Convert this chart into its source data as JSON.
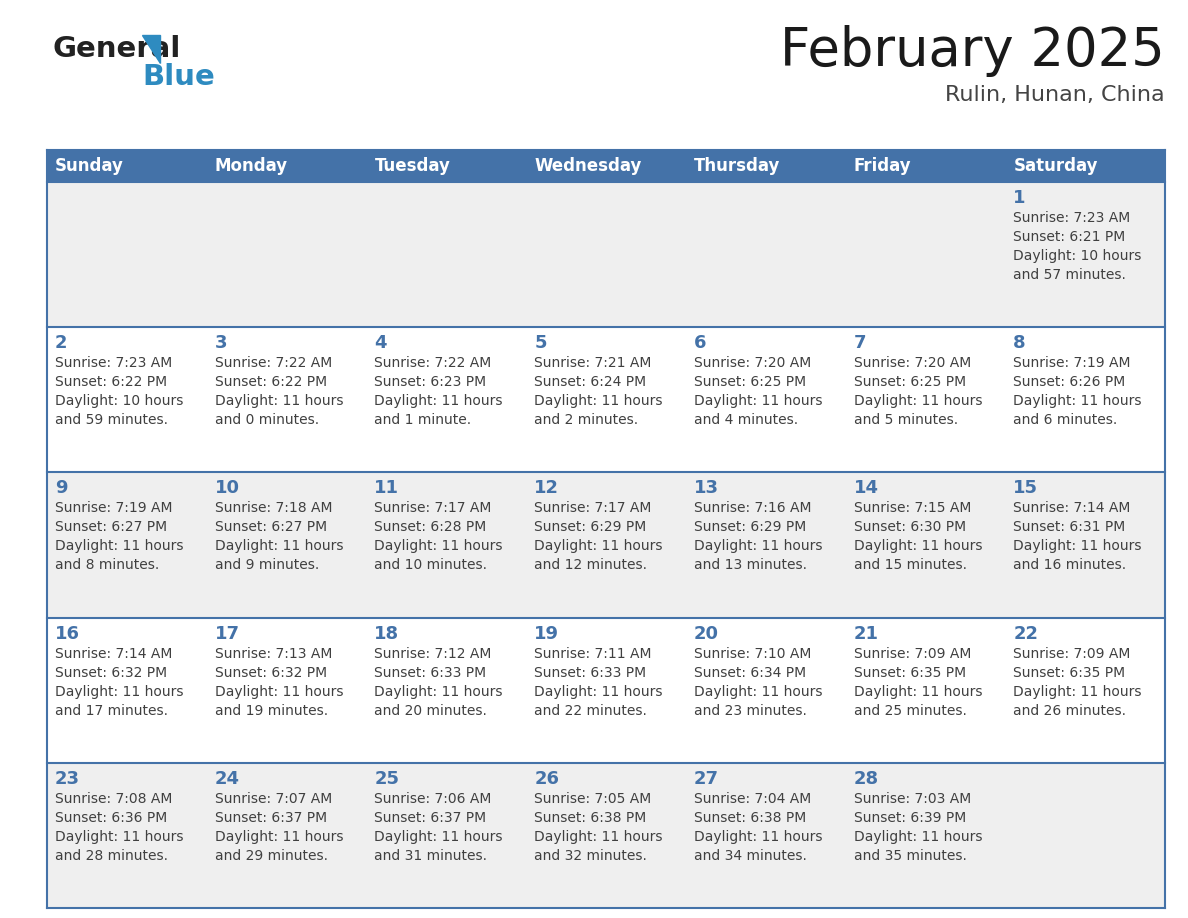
{
  "title": "February 2025",
  "subtitle": "Rulin, Hunan, China",
  "days_of_week": [
    "Sunday",
    "Monday",
    "Tuesday",
    "Wednesday",
    "Thursday",
    "Friday",
    "Saturday"
  ],
  "header_bg": "#4472a8",
  "header_text": "#ffffff",
  "cell_bg_odd": "#efefef",
  "cell_bg_even": "#ffffff",
  "day_num_color": "#4472a8",
  "text_color": "#404040",
  "border_color": "#4472a8",
  "calendar_data": [
    [
      null,
      null,
      null,
      null,
      null,
      null,
      {
        "day": 1,
        "sunrise": "7:23 AM",
        "sunset": "6:21 PM",
        "daylight_line1": "Daylight: 10 hours",
        "daylight_line2": "and 57 minutes."
      }
    ],
    [
      {
        "day": 2,
        "sunrise": "7:23 AM",
        "sunset": "6:22 PM",
        "daylight_line1": "Daylight: 10 hours",
        "daylight_line2": "and 59 minutes."
      },
      {
        "day": 3,
        "sunrise": "7:22 AM",
        "sunset": "6:22 PM",
        "daylight_line1": "Daylight: 11 hours",
        "daylight_line2": "and 0 minutes."
      },
      {
        "day": 4,
        "sunrise": "7:22 AM",
        "sunset": "6:23 PM",
        "daylight_line1": "Daylight: 11 hours",
        "daylight_line2": "and 1 minute."
      },
      {
        "day": 5,
        "sunrise": "7:21 AM",
        "sunset": "6:24 PM",
        "daylight_line1": "Daylight: 11 hours",
        "daylight_line2": "and 2 minutes."
      },
      {
        "day": 6,
        "sunrise": "7:20 AM",
        "sunset": "6:25 PM",
        "daylight_line1": "Daylight: 11 hours",
        "daylight_line2": "and 4 minutes."
      },
      {
        "day": 7,
        "sunrise": "7:20 AM",
        "sunset": "6:25 PM",
        "daylight_line1": "Daylight: 11 hours",
        "daylight_line2": "and 5 minutes."
      },
      {
        "day": 8,
        "sunrise": "7:19 AM",
        "sunset": "6:26 PM",
        "daylight_line1": "Daylight: 11 hours",
        "daylight_line2": "and 6 minutes."
      }
    ],
    [
      {
        "day": 9,
        "sunrise": "7:19 AM",
        "sunset": "6:27 PM",
        "daylight_line1": "Daylight: 11 hours",
        "daylight_line2": "and 8 minutes."
      },
      {
        "day": 10,
        "sunrise": "7:18 AM",
        "sunset": "6:27 PM",
        "daylight_line1": "Daylight: 11 hours",
        "daylight_line2": "and 9 minutes."
      },
      {
        "day": 11,
        "sunrise": "7:17 AM",
        "sunset": "6:28 PM",
        "daylight_line1": "Daylight: 11 hours",
        "daylight_line2": "and 10 minutes."
      },
      {
        "day": 12,
        "sunrise": "7:17 AM",
        "sunset": "6:29 PM",
        "daylight_line1": "Daylight: 11 hours",
        "daylight_line2": "and 12 minutes."
      },
      {
        "day": 13,
        "sunrise": "7:16 AM",
        "sunset": "6:29 PM",
        "daylight_line1": "Daylight: 11 hours",
        "daylight_line2": "and 13 minutes."
      },
      {
        "day": 14,
        "sunrise": "7:15 AM",
        "sunset": "6:30 PM",
        "daylight_line1": "Daylight: 11 hours",
        "daylight_line2": "and 15 minutes."
      },
      {
        "day": 15,
        "sunrise": "7:14 AM",
        "sunset": "6:31 PM",
        "daylight_line1": "Daylight: 11 hours",
        "daylight_line2": "and 16 minutes."
      }
    ],
    [
      {
        "day": 16,
        "sunrise": "7:14 AM",
        "sunset": "6:32 PM",
        "daylight_line1": "Daylight: 11 hours",
        "daylight_line2": "and 17 minutes."
      },
      {
        "day": 17,
        "sunrise": "7:13 AM",
        "sunset": "6:32 PM",
        "daylight_line1": "Daylight: 11 hours",
        "daylight_line2": "and 19 minutes."
      },
      {
        "day": 18,
        "sunrise": "7:12 AM",
        "sunset": "6:33 PM",
        "daylight_line1": "Daylight: 11 hours",
        "daylight_line2": "and 20 minutes."
      },
      {
        "day": 19,
        "sunrise": "7:11 AM",
        "sunset": "6:33 PM",
        "daylight_line1": "Daylight: 11 hours",
        "daylight_line2": "and 22 minutes."
      },
      {
        "day": 20,
        "sunrise": "7:10 AM",
        "sunset": "6:34 PM",
        "daylight_line1": "Daylight: 11 hours",
        "daylight_line2": "and 23 minutes."
      },
      {
        "day": 21,
        "sunrise": "7:09 AM",
        "sunset": "6:35 PM",
        "daylight_line1": "Daylight: 11 hours",
        "daylight_line2": "and 25 minutes."
      },
      {
        "day": 22,
        "sunrise": "7:09 AM",
        "sunset": "6:35 PM",
        "daylight_line1": "Daylight: 11 hours",
        "daylight_line2": "and 26 minutes."
      }
    ],
    [
      {
        "day": 23,
        "sunrise": "7:08 AM",
        "sunset": "6:36 PM",
        "daylight_line1": "Daylight: 11 hours",
        "daylight_line2": "and 28 minutes."
      },
      {
        "day": 24,
        "sunrise": "7:07 AM",
        "sunset": "6:37 PM",
        "daylight_line1": "Daylight: 11 hours",
        "daylight_line2": "and 29 minutes."
      },
      {
        "day": 25,
        "sunrise": "7:06 AM",
        "sunset": "6:37 PM",
        "daylight_line1": "Daylight: 11 hours",
        "daylight_line2": "and 31 minutes."
      },
      {
        "day": 26,
        "sunrise": "7:05 AM",
        "sunset": "6:38 PM",
        "daylight_line1": "Daylight: 11 hours",
        "daylight_line2": "and 32 minutes."
      },
      {
        "day": 27,
        "sunrise": "7:04 AM",
        "sunset": "6:38 PM",
        "daylight_line1": "Daylight: 11 hours",
        "daylight_line2": "and 34 minutes."
      },
      {
        "day": 28,
        "sunrise": "7:03 AM",
        "sunset": "6:39 PM",
        "daylight_line1": "Daylight: 11 hours",
        "daylight_line2": "and 35 minutes."
      },
      null
    ]
  ],
  "logo_text1": "General",
  "logo_text2": "Blue",
  "logo_color1": "#222222",
  "logo_color2": "#2e8bc0",
  "logo_triangle_color": "#2e8bc0"
}
